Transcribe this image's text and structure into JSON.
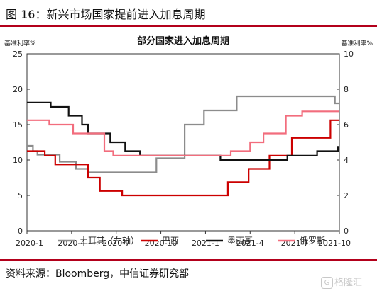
{
  "header": {
    "title": "图 16：新兴市场国家提前进入加息周期"
  },
  "footer": {
    "source": "资料来源：Bloomberg，中信证券研究部"
  },
  "watermark": {
    "badge": "G",
    "text": "格隆汇"
  },
  "chart_data": {
    "type": "line",
    "title": "部分国家进入加息周期",
    "ylabel_left": "基准利率%",
    "ylabel_right": "基准利率%",
    "x_ticks": [
      "2020-1",
      "2020-4",
      "2020-7",
      "2020-10",
      "2021-1",
      "2021-4",
      "2021-7",
      "2021-10"
    ],
    "x_range": [
      0,
      21
    ],
    "ylim_left": [
      0,
      25
    ],
    "ylim_right": [
      0,
      10
    ],
    "yticks_left": [
      "0",
      "5",
      "10",
      "15",
      "20",
      "25"
    ],
    "yticks_right": [
      "0",
      "2",
      "4",
      "6",
      "8",
      "10"
    ],
    "grid": false,
    "legend_position": "bottom",
    "series": [
      {
        "name": "土耳其（左轴）",
        "axis": "left",
        "color": "#8c8c8c",
        "x": [
          0,
          0.4,
          0.4,
          0.7,
          0.7,
          1.2,
          1.2,
          2.2,
          2.2,
          3.3,
          3.3,
          4.1,
          4.1,
          4.6,
          4.6,
          8.7,
          8.7,
          10.2,
          10.2,
          10.6,
          10.6,
          11.1,
          11.1,
          11.9,
          11.9,
          14.1,
          14.1,
          20.7,
          20.7,
          21
        ],
        "y": [
          12,
          12,
          11.25,
          11.25,
          10.75,
          10.75,
          10.75,
          10.75,
          9.75,
          9.75,
          8.75,
          8.75,
          8.25,
          8.25,
          8.25,
          8.25,
          10.25,
          10.25,
          10.25,
          10.25,
          15,
          15,
          15,
          15,
          17,
          17,
          19,
          19,
          18,
          18
        ]
      },
      {
        "name": "巴西",
        "axis": "right",
        "color": "#cc0000",
        "x": [
          0,
          1.2,
          1.2,
          1.9,
          1.9,
          3.2,
          3.2,
          4.1,
          4.1,
          4.9,
          4.9,
          6.4,
          6.4,
          13.5,
          13.5,
          14.9,
          14.9,
          16.3,
          16.3,
          17.8,
          17.8,
          19.3,
          19.3,
          20.4,
          20.4,
          20.8,
          20.8,
          21
        ],
        "y": [
          4.5,
          4.5,
          4.25,
          4.25,
          3.75,
          3.75,
          3.75,
          3.75,
          3.0,
          3.0,
          2.25,
          2.25,
          2.0,
          2.0,
          2.75,
          2.75,
          3.5,
          3.5,
          4.25,
          4.25,
          5.25,
          5.25,
          5.25,
          5.25,
          6.25,
          6.25,
          6.25,
          6.25
        ]
      },
      {
        "name": "墨西哥",
        "axis": "right",
        "color": "#111111",
        "x": [
          0,
          1.6,
          1.6,
          2.8,
          2.8,
          3.7,
          3.7,
          4.1,
          4.1,
          5.6,
          5.6,
          6.6,
          6.6,
          7.6,
          7.6,
          8.6,
          8.6,
          10.4,
          10.4,
          11.6,
          11.6,
          13.0,
          13.0,
          17.5,
          17.5,
          19.5,
          19.5,
          20.9,
          20.9,
          21
        ],
        "y": [
          7.25,
          7.25,
          7.0,
          7.0,
          6.5,
          6.5,
          6.0,
          6.0,
          5.5,
          5.5,
          5.0,
          5.0,
          4.5,
          4.5,
          4.25,
          4.25,
          4.25,
          4.25,
          4.25,
          4.25,
          4.25,
          4.25,
          4.0,
          4.0,
          4.25,
          4.25,
          4.5,
          4.5,
          4.75,
          4.75
        ]
      },
      {
        "name": "俄罗斯",
        "axis": "right",
        "color": "#f26d7d",
        "x": [
          0,
          1.5,
          1.5,
          3.1,
          3.1,
          5.2,
          5.2,
          5.8,
          5.8,
          6.9,
          6.9,
          13.7,
          13.7,
          15.0,
          15.0,
          15.9,
          15.9,
          17.4,
          17.4,
          18.5,
          18.5,
          20.1,
          20.1,
          21
        ],
        "y": [
          6.25,
          6.25,
          6.0,
          6.0,
          5.5,
          5.5,
          4.5,
          4.5,
          4.25,
          4.25,
          4.25,
          4.25,
          4.5,
          4.5,
          5.0,
          5.0,
          5.5,
          5.5,
          6.5,
          6.5,
          6.75,
          6.75,
          6.75,
          6.75
        ]
      }
    ]
  }
}
